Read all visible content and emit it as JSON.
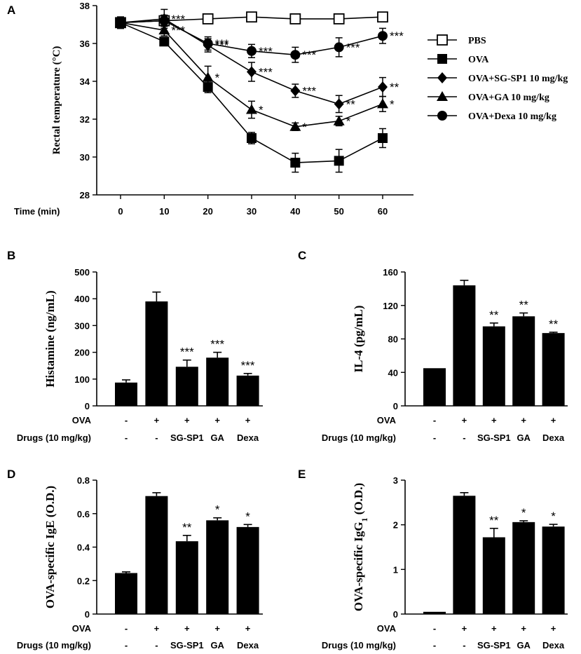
{
  "panels_labels": {
    "A": "A",
    "B": "B",
    "C": "C",
    "D": "D",
    "E": "E"
  },
  "chart_data": [
    {
      "id": "A",
      "type": "line",
      "title": "",
      "xlabel": "Time (min)",
      "ylabel": "Rectal temperature (°C)",
      "x": [
        0,
        10,
        20,
        30,
        40,
        50,
        60
      ],
      "ylim": [
        28,
        38
      ],
      "yticks": [
        28,
        30,
        32,
        34,
        36,
        38
      ],
      "series": [
        {
          "name": "PBS",
          "marker": "square-open",
          "values": [
            37.1,
            37.2,
            37.3,
            37.4,
            37.3,
            37.3,
            37.4
          ],
          "errors": [
            0.3,
            0.2,
            0.15,
            0.15,
            0.15,
            0.15,
            0.1
          ],
          "stars": [
            "",
            "",
            "",
            "",
            "",
            "",
            ""
          ]
        },
        {
          "name": "OVA",
          "marker": "square",
          "values": [
            37.1,
            36.1,
            33.7,
            31.0,
            29.7,
            29.8,
            31.0
          ],
          "errors": [
            0.3,
            0.2,
            0.3,
            0.3,
            0.5,
            0.6,
            0.5
          ],
          "stars": [
            "",
            "",
            "",
            "",
            "",
            "",
            ""
          ]
        },
        {
          "name": "OVA+SG-SP1 10 mg/kg",
          "marker": "diamond",
          "values": [
            37.1,
            37.3,
            35.9,
            34.5,
            33.5,
            32.8,
            33.7
          ],
          "errors": [
            0.3,
            0.5,
            0.35,
            0.5,
            0.35,
            0.45,
            0.5
          ],
          "stars": [
            "",
            "***",
            "***",
            "***",
            "***",
            "**",
            "**"
          ]
        },
        {
          "name": "OVA+GA 10 mg/kg",
          "marker": "triangle",
          "values": [
            37.1,
            36.7,
            34.2,
            32.5,
            31.6,
            31.9,
            32.8
          ],
          "errors": [
            0.3,
            0.3,
            0.6,
            0.45,
            0.2,
            0.25,
            0.4
          ],
          "stars": [
            "",
            "***",
            "*",
            "*",
            "*",
            "*",
            "*"
          ]
        },
        {
          "name": "OVA+Dexa 10 mg/kg",
          "marker": "circle",
          "values": [
            37.1,
            37.2,
            36.0,
            35.6,
            35.4,
            35.8,
            36.4
          ],
          "errors": [
            0.3,
            0.3,
            0.35,
            0.35,
            0.4,
            0.5,
            0.4
          ],
          "stars": [
            "",
            "",
            "***",
            "***",
            "***",
            "***",
            "***"
          ]
        }
      ]
    },
    {
      "id": "B",
      "type": "bar",
      "ylabel": "Histamine (ng/mL)",
      "ylim": [
        0,
        500
      ],
      "yticks": [
        0,
        100,
        200,
        300,
        400,
        500
      ],
      "values": [
        87,
        390,
        146,
        180,
        113
      ],
      "errors": [
        10,
        35,
        25,
        20,
        8
      ],
      "stars": [
        "",
        "",
        "***",
        "***",
        "***"
      ],
      "ova_row": [
        "-",
        "+",
        "+",
        "+",
        "+"
      ],
      "drug_row": [
        "-",
        "-",
        "SG-SP1",
        "GA",
        "Dexa"
      ],
      "row_labels": [
        "OVA",
        "Drugs (10 mg/kg)"
      ]
    },
    {
      "id": "C",
      "type": "bar",
      "ylabel": "IL-4 (pg/mL)",
      "ylim": [
        0,
        160
      ],
      "yticks": [
        0,
        40,
        80,
        120,
        160
      ],
      "values": [
        45,
        144,
        95,
        107,
        87
      ],
      "errors": [
        0,
        6,
        4,
        4,
        1
      ],
      "stars": [
        "",
        "",
        "**",
        "**",
        "**"
      ],
      "ova_row": [
        "-",
        "+",
        "+",
        "+",
        "+"
      ],
      "drug_row": [
        "-",
        "-",
        "SG-SP1",
        "GA",
        "Dexa"
      ],
      "row_labels": [
        "OVA",
        "Drugs (10 mg/kg)"
      ]
    },
    {
      "id": "D",
      "type": "bar",
      "ylabel": "OVA-specific IgE (O.D.)",
      "ylim": [
        0,
        0.8
      ],
      "yticks": [
        0,
        0.2,
        0.4,
        0.6,
        0.8
      ],
      "values": [
        0.245,
        0.705,
        0.435,
        0.56,
        0.52
      ],
      "errors": [
        0.007,
        0.02,
        0.035,
        0.015,
        0.015
      ],
      "stars": [
        "",
        "",
        "**",
        "*",
        "*"
      ],
      "ova_row": [
        "-",
        "+",
        "+",
        "+",
        "+"
      ],
      "drug_row": [
        "-",
        "-",
        "SG-SP1",
        "GA",
        "Dexa"
      ],
      "row_labels": [
        "OVA",
        "Drugs (10 mg/kg)"
      ]
    },
    {
      "id": "E",
      "type": "bar",
      "ylabel": "OVA-specific IgG1 (O.D.)",
      "ylim": [
        0,
        3
      ],
      "yticks": [
        0,
        1,
        2,
        3
      ],
      "values": [
        0.05,
        2.65,
        1.72,
        2.06,
        1.96
      ],
      "errors": [
        0,
        0.07,
        0.2,
        0.03,
        0.05
      ],
      "stars": [
        "",
        "",
        "**",
        "*",
        "*"
      ],
      "ova_row": [
        "-",
        "+",
        "+",
        "+",
        "+"
      ],
      "drug_row": [
        "-",
        "-",
        "SG-SP1",
        "GA",
        "Dexa"
      ],
      "row_labels": [
        "OVA",
        "Drugs (10 mg/kg)"
      ]
    }
  ]
}
